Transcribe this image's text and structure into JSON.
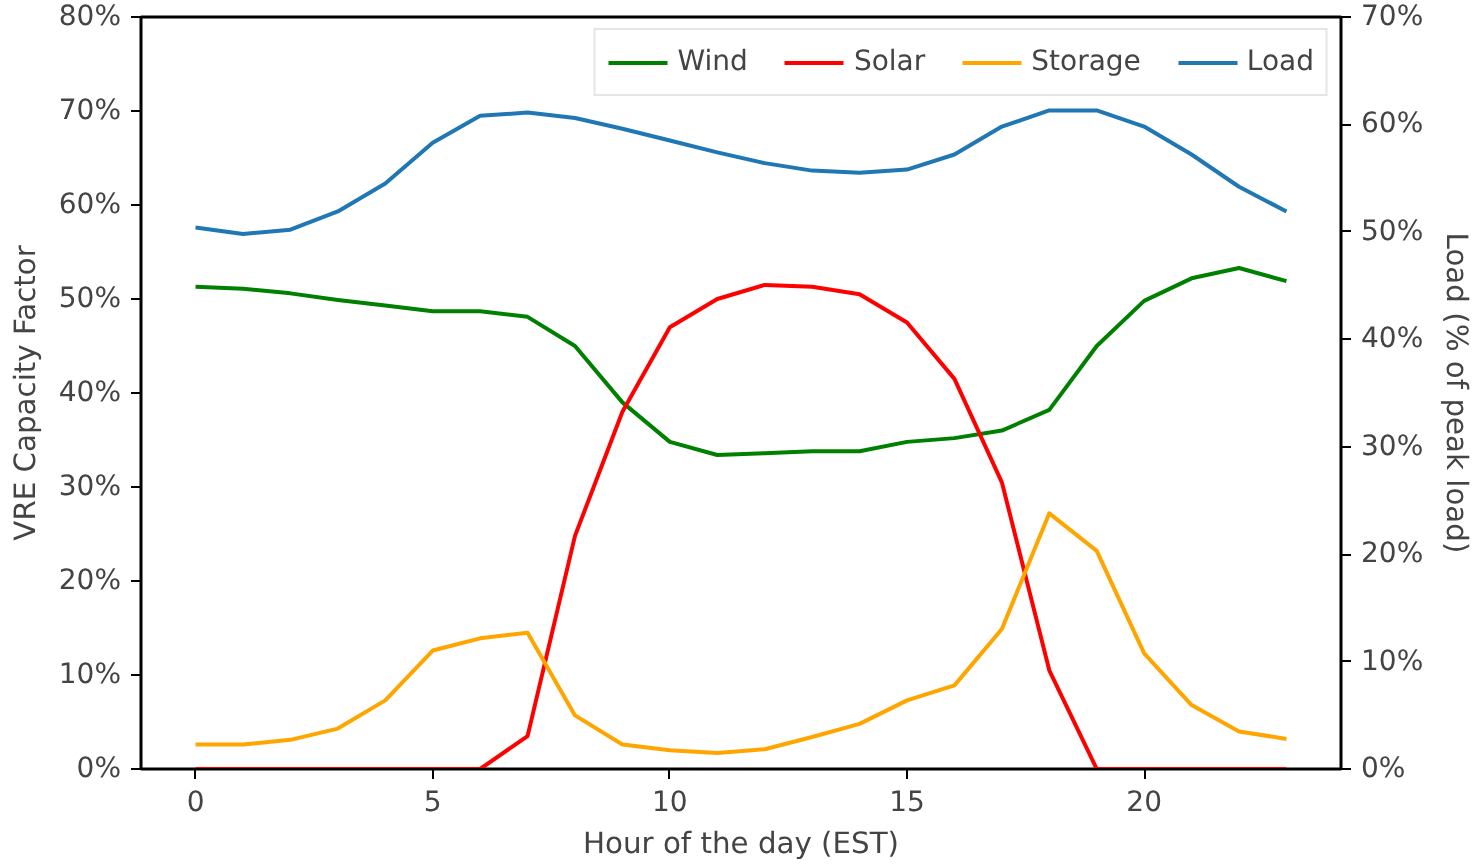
{
  "chart_data": {
    "type": "line",
    "xlabel": "Hour of the day (EST)",
    "ylabel": "VRE Capacity Factor",
    "y2label": "Load (% of peak load)",
    "x": [
      0,
      1,
      2,
      3,
      4,
      5,
      6,
      7,
      8,
      9,
      10,
      11,
      12,
      13,
      14,
      15,
      16,
      17,
      18,
      19,
      20,
      21,
      22,
      23
    ],
    "series": [
      {
        "name": "Wind",
        "color": "#008000",
        "values": [
          51.3,
          51.1,
          50.6,
          49.9,
          49.3,
          48.7,
          48.7,
          48.1,
          45.0,
          39.0,
          34.8,
          33.4,
          33.6,
          33.8,
          33.8,
          34.8,
          35.2,
          36.0,
          38.2,
          45.0,
          49.8,
          52.2,
          53.3,
          51.9
        ]
      },
      {
        "name": "Solar",
        "color": "#ff0000",
        "values": [
          0,
          0,
          0,
          0,
          0,
          0,
          0,
          3.5,
          24.8,
          38.0,
          47.0,
          50.0,
          51.5,
          51.3,
          50.5,
          47.5,
          41.5,
          30.5,
          10.5,
          0,
          0,
          0,
          0,
          0
        ]
      },
      {
        "name": "Storage",
        "color": "#ffa500",
        "values": [
          2.6,
          2.6,
          3.1,
          4.3,
          7.3,
          12.6,
          13.9,
          14.5,
          5.7,
          2.6,
          2.0,
          1.7,
          2.1,
          3.4,
          4.8,
          7.3,
          8.9,
          14.9,
          27.2,
          23.2,
          12.3,
          6.8,
          4.0,
          3.2
        ]
      },
      {
        "name": "Load",
        "color": "#1f77b4",
        "axis": "y2",
        "values": [
          50.4,
          49.8,
          50.2,
          51.9,
          54.5,
          58.3,
          60.8,
          61.1,
          60.6,
          59.6,
          58.5,
          57.4,
          56.4,
          55.7,
          55.5,
          55.8,
          57.2,
          59.8,
          61.3,
          61.3,
          59.8,
          57.2,
          54.2,
          51.9
        ]
      }
    ],
    "xlim": [
      -1.15,
      24.15
    ],
    "xticks": [
      0,
      5,
      10,
      15,
      20
    ],
    "ylim": [
      0,
      80
    ],
    "yticks": [
      {
        "value": 0,
        "label": "0%"
      },
      {
        "value": 10,
        "label": "10%"
      },
      {
        "value": 20,
        "label": "20%"
      },
      {
        "value": 30,
        "label": "30%"
      },
      {
        "value": 40,
        "label": "40%"
      },
      {
        "value": 50,
        "label": "50%"
      },
      {
        "value": 60,
        "label": "60%"
      },
      {
        "value": 70,
        "label": "70%"
      },
      {
        "value": 80,
        "label": "80%"
      }
    ],
    "y2lim": [
      0,
      70
    ],
    "y2ticks": [
      {
        "value": 0,
        "label": "0%"
      },
      {
        "value": 10,
        "label": "10%"
      },
      {
        "value": 20,
        "label": "20%"
      },
      {
        "value": 30,
        "label": "30%"
      },
      {
        "value": 40,
        "label": "40%"
      },
      {
        "value": 50,
        "label": "50%"
      },
      {
        "value": 60,
        "label": "60%"
      },
      {
        "value": 70,
        "label": "70%"
      }
    ],
    "legend": "top right",
    "grid": false,
    "line_style": "solid"
  }
}
